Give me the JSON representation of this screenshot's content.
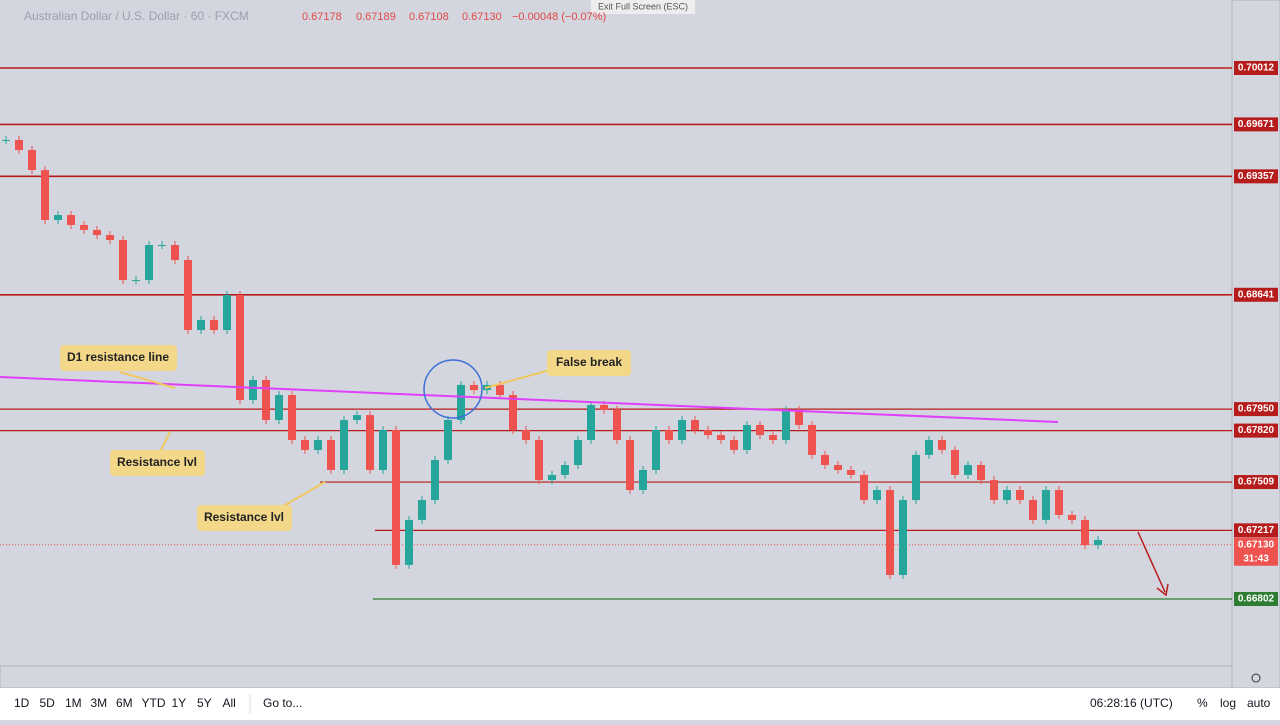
{
  "header": {
    "symbol": "Australian Dollar / U.S. Dollar · 60 · FXCM",
    "open": "0.67178",
    "high": "0.67189",
    "low": "0.67108",
    "close": "0.67130",
    "change": "−0.00048 (−0.07%)",
    "exit": "Exit Full Screen (ESC)"
  },
  "price_range": [
    0.66397,
    0.70423
  ],
  "closes": [
    0.69577,
    0.69516,
    0.69395,
    0.69093,
    0.69123,
    0.69063,
    0.69033,
    0.69002,
    0.68972,
    0.6873,
    0.6873,
    0.68942,
    0.68942,
    0.68851,
    0.68428,
    0.68489,
    0.68428,
    0.6864,
    0.68005,
    0.68126,
    0.67884,
    0.68035,
    0.67763,
    0.67703,
    0.67763,
    0.67582,
    0.67884,
    0.67914,
    0.67582,
    0.67824,
    0.67008,
    0.6728,
    0.674,
    0.67642,
    0.67884,
    0.68096,
    0.68065,
    0.68096,
    0.68035,
    0.67824,
    0.67763,
    0.67521,
    0.67552,
    0.67612,
    0.67763,
    0.67975,
    0.67945,
    0.67763,
    0.67461,
    0.67582,
    0.67824,
    0.67763,
    0.67884,
    0.67824,
    0.67793,
    0.67763,
    0.67703,
    0.67854,
    0.67793,
    0.67763,
    0.67945,
    0.67854,
    0.67673,
    0.67612,
    0.67582,
    0.67552,
    0.674,
    0.67461,
    0.66947,
    0.674,
    0.67673,
    0.67763,
    0.67703,
    0.67552,
    0.67612,
    0.67521,
    0.674,
    0.67461,
    0.674,
    0.6728,
    0.67461,
    0.6731,
    0.6728,
    0.67128,
    0.67159
  ],
  "levels": [
    {
      "price": 0.70012,
      "label": "0.70012"
    },
    {
      "price": 0.69671,
      "label": "0.69671"
    },
    {
      "price": 0.69357,
      "label": "0.69357"
    },
    {
      "price": 0.68641,
      "label": "0.68641"
    },
    {
      "price": 0.6795,
      "label": "0.67950"
    },
    {
      "price": 0.6782,
      "label": "0.67820"
    },
    {
      "price": 0.67509,
      "label": "0.67509"
    },
    {
      "price": 0.67217,
      "label": "0.67217"
    },
    {
      "price": 0.66802,
      "label": "0.66802"
    }
  ],
  "current": {
    "price": 0.6713,
    "label": "0.67130",
    "countdown": "31:43"
  },
  "annotations": [
    "D1 resistance line",
    "False break",
    "Resistance lvl",
    "Resistance lvl"
  ],
  "toolbar": {
    "ranges": [
      "1D",
      "5D",
      "1M",
      "3M",
      "6M",
      "YTD",
      "1Y",
      "5Y",
      "All"
    ],
    "goto": "Go to...",
    "time": "06:28:16 (UTC)",
    "percent": "%",
    "log": "log",
    "auto": "auto"
  }
}
